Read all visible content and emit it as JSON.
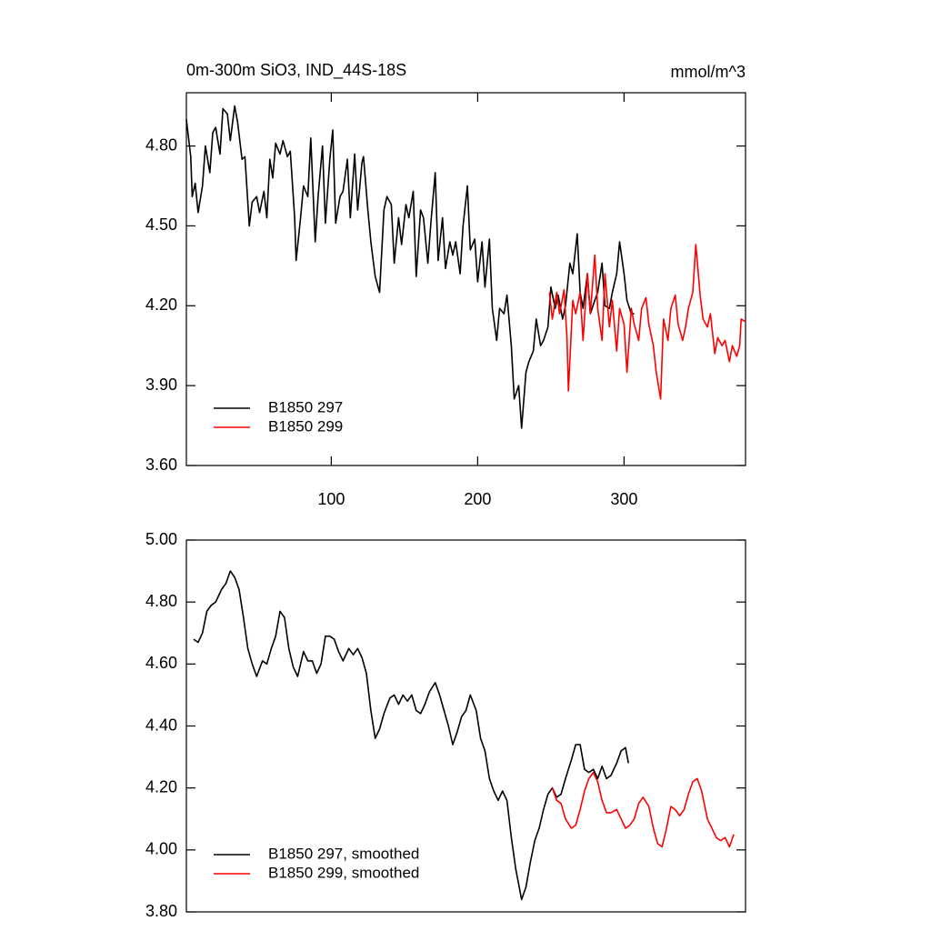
{
  "chart_data": [
    {
      "type": "line",
      "title": "0m-300m SiO3, IND_44S-18S",
      "units": "mmol/m^3",
      "xlim": [
        1,
        383
      ],
      "xticks": [
        100,
        200,
        300
      ],
      "ylim": [
        3.6,
        5.0
      ],
      "yticks": [
        {
          "value": 3.6,
          "label": "3.60"
        },
        {
          "value": 3.9,
          "label": "3.90"
        },
        {
          "value": 4.2,
          "label": "4.20"
        },
        {
          "value": 4.5,
          "label": "4.50"
        },
        {
          "value": 4.8,
          "label": "4.80"
        }
      ],
      "legend": "lower left",
      "series": [
        {
          "name": "B1850 297",
          "color": "#000000",
          "x": [
            1,
            4,
            5,
            7,
            9,
            12,
            14,
            17,
            19,
            21,
            24,
            26,
            29,
            31,
            34,
            36,
            39,
            41,
            44,
            46,
            49,
            51,
            54,
            56,
            58,
            60,
            62,
            65,
            67,
            70,
            72,
            75,
            76,
            79,
            81,
            84,
            86,
            89,
            91,
            94,
            96,
            99,
            101,
            103,
            106,
            108,
            111,
            113,
            116,
            118,
            121,
            122,
            125,
            127,
            130,
            133,
            136,
            138,
            141,
            143,
            146,
            148,
            151,
            153,
            156,
            158,
            161,
            163,
            166,
            168,
            171,
            173,
            176,
            178,
            181,
            183,
            185,
            188,
            190,
            193,
            195,
            198,
            200,
            203,
            205,
            208,
            210,
            213,
            215,
            218,
            220,
            223,
            225,
            228,
            230,
            233,
            235,
            238,
            240,
            243,
            245,
            248,
            250,
            253,
            255,
            258,
            260,
            263,
            265,
            268,
            270,
            272,
            275,
            277,
            280,
            282,
            285,
            287,
            290,
            292,
            295,
            297,
            300,
            302,
            305,
            307
          ],
          "values": [
            4.9,
            4.76,
            4.61,
            4.66,
            4.55,
            4.65,
            4.8,
            4.7,
            4.85,
            4.87,
            4.77,
            4.94,
            4.92,
            4.82,
            4.95,
            4.89,
            4.75,
            4.76,
            4.5,
            4.59,
            4.61,
            4.55,
            4.63,
            4.53,
            4.75,
            4.68,
            4.81,
            4.77,
            4.82,
            4.76,
            4.78,
            4.53,
            4.37,
            4.53,
            4.65,
            4.61,
            4.83,
            4.44,
            4.61,
            4.8,
            4.51,
            4.75,
            4.86,
            4.51,
            4.61,
            4.63,
            4.75,
            4.53,
            4.77,
            4.56,
            4.74,
            4.76,
            4.56,
            4.44,
            4.31,
            4.25,
            4.56,
            4.61,
            4.58,
            4.36,
            4.53,
            4.43,
            4.58,
            4.53,
            4.63,
            4.31,
            4.56,
            4.53,
            4.36,
            4.51,
            4.7,
            4.37,
            4.53,
            4.34,
            4.44,
            4.39,
            4.44,
            4.32,
            4.5,
            4.65,
            4.41,
            4.45,
            4.29,
            4.44,
            4.27,
            4.45,
            4.19,
            4.07,
            4.19,
            4.17,
            4.24,
            4.05,
            3.85,
            3.9,
            3.74,
            3.95,
            3.99,
            4.03,
            4.15,
            4.05,
            4.07,
            4.12,
            4.27,
            4.19,
            4.24,
            4.15,
            4.2,
            4.36,
            4.32,
            4.47,
            4.25,
            4.19,
            4.32,
            4.17,
            4.22,
            4.25,
            4.36,
            4.2,
            4.19,
            4.25,
            4.32,
            4.44,
            4.32,
            4.22,
            4.17,
            4.17
          ]
        },
        {
          "name": "B1850 299",
          "color": "#ff0000",
          "x": [
            249,
            251,
            254,
            256,
            259,
            261,
            262,
            265,
            267,
            270,
            272,
            275,
            277,
            280,
            282,
            285,
            287,
            290,
            292,
            295,
            297,
            300,
            302,
            305,
            307,
            310,
            312,
            315,
            317,
            320,
            322,
            325,
            327,
            330,
            332,
            335,
            337,
            340,
            342,
            344,
            347,
            349,
            352,
            354,
            357,
            359,
            362,
            364,
            367,
            369,
            372,
            374,
            377,
            379,
            380,
            383
          ],
          "values": [
            4.25,
            4.15,
            4.25,
            4.17,
            4.26,
            4.08,
            3.88,
            4.22,
            4.17,
            4.25,
            4.07,
            4.32,
            4.17,
            4.39,
            4.19,
            4.07,
            4.32,
            4.12,
            4.22,
            4.03,
            4.19,
            4.13,
            3.95,
            4.19,
            4.13,
            4.07,
            4.19,
            4.23,
            4.13,
            4.05,
            3.95,
            3.85,
            4.15,
            4.07,
            4.19,
            4.24,
            4.13,
            4.07,
            4.12,
            4.19,
            4.25,
            4.43,
            4.24,
            4.15,
            4.12,
            4.17,
            4.02,
            4.08,
            4.05,
            4.07,
            3.99,
            4.05,
            4.01,
            4.05,
            4.15,
            4.14
          ]
        }
      ]
    },
    {
      "type": "line",
      "xlim": [
        1,
        383
      ],
      "ylim": [
        3.8,
        5.0
      ],
      "yticks": [
        {
          "value": 3.8,
          "label": "3.80"
        },
        {
          "value": 4.0,
          "label": "4.00"
        },
        {
          "value": 4.2,
          "label": "4.20"
        },
        {
          "value": 4.4,
          "label": "4.40"
        },
        {
          "value": 4.6,
          "label": "4.60"
        },
        {
          "value": 4.8,
          "label": "4.80"
        },
        {
          "value": 5.0,
          "label": "5.00"
        }
      ],
      "legend": "lower left",
      "series": [
        {
          "name": "B1850 297, smoothed",
          "color": "#000000",
          "x": [
            6,
            9,
            12,
            15,
            18,
            21,
            25,
            28,
            31,
            34,
            37,
            40,
            43,
            46,
            49,
            53,
            56,
            59,
            62,
            65,
            68,
            71,
            74,
            77,
            81,
            84,
            87,
            90,
            93,
            96,
            99,
            102,
            105,
            108,
            112,
            115,
            118,
            121,
            124,
            127,
            130,
            133,
            136,
            140,
            143,
            146,
            149,
            152,
            155,
            158,
            161,
            164,
            167,
            171,
            174,
            177,
            180,
            183,
            186,
            189,
            192,
            195,
            199,
            202,
            205,
            208,
            211,
            214,
            217,
            220,
            223,
            226,
            230,
            233,
            236,
            239,
            242,
            245,
            248,
            251,
            254,
            257,
            260,
            264,
            267,
            270,
            273,
            276,
            279,
            282,
            285,
            288,
            291,
            295,
            298,
            301,
            303
          ],
          "values": [
            4.68,
            4.67,
            4.7,
            4.77,
            4.79,
            4.8,
            4.84,
            4.86,
            4.9,
            4.88,
            4.84,
            4.75,
            4.65,
            4.6,
            4.56,
            4.61,
            4.6,
            4.65,
            4.69,
            4.77,
            4.75,
            4.65,
            4.59,
            4.56,
            4.64,
            4.61,
            4.61,
            4.57,
            4.6,
            4.69,
            4.69,
            4.68,
            4.64,
            4.61,
            4.65,
            4.63,
            4.65,
            4.62,
            4.57,
            4.45,
            4.36,
            4.39,
            4.44,
            4.49,
            4.5,
            4.47,
            4.5,
            4.48,
            4.5,
            4.45,
            4.44,
            4.47,
            4.51,
            4.54,
            4.5,
            4.45,
            4.4,
            4.34,
            4.38,
            4.43,
            4.45,
            4.5,
            4.45,
            4.36,
            4.32,
            4.23,
            4.19,
            4.16,
            4.19,
            4.16,
            4.04,
            3.94,
            3.84,
            3.88,
            3.96,
            4.03,
            4.07,
            4.13,
            4.18,
            4.2,
            4.17,
            4.18,
            4.23,
            4.29,
            4.34,
            4.34,
            4.26,
            4.25,
            4.26,
            4.23,
            4.27,
            4.23,
            4.24,
            4.28,
            4.32,
            4.33,
            4.28
          ]
        },
        {
          "name": "B1850 299, smoothed",
          "color": "#ff0000",
          "x": [
            251,
            254,
            257,
            260,
            264,
            267,
            270,
            273,
            276,
            279,
            282,
            285,
            288,
            291,
            295,
            298,
            301,
            304,
            307,
            310,
            313,
            317,
            320,
            323,
            326,
            329,
            332,
            335,
            338,
            341,
            344,
            347,
            350,
            353,
            357,
            360,
            363,
            366,
            369,
            372,
            375
          ],
          "values": [
            4.2,
            4.16,
            4.15,
            4.1,
            4.07,
            4.08,
            4.13,
            4.19,
            4.23,
            4.25,
            4.22,
            4.16,
            4.12,
            4.12,
            4.13,
            4.1,
            4.07,
            4.08,
            4.1,
            4.15,
            4.17,
            4.14,
            4.07,
            4.02,
            4.01,
            4.07,
            4.14,
            4.13,
            4.11,
            4.13,
            4.18,
            4.22,
            4.23,
            4.19,
            4.1,
            4.07,
            4.04,
            4.03,
            4.04,
            4.01,
            4.05
          ]
        }
      ]
    }
  ]
}
